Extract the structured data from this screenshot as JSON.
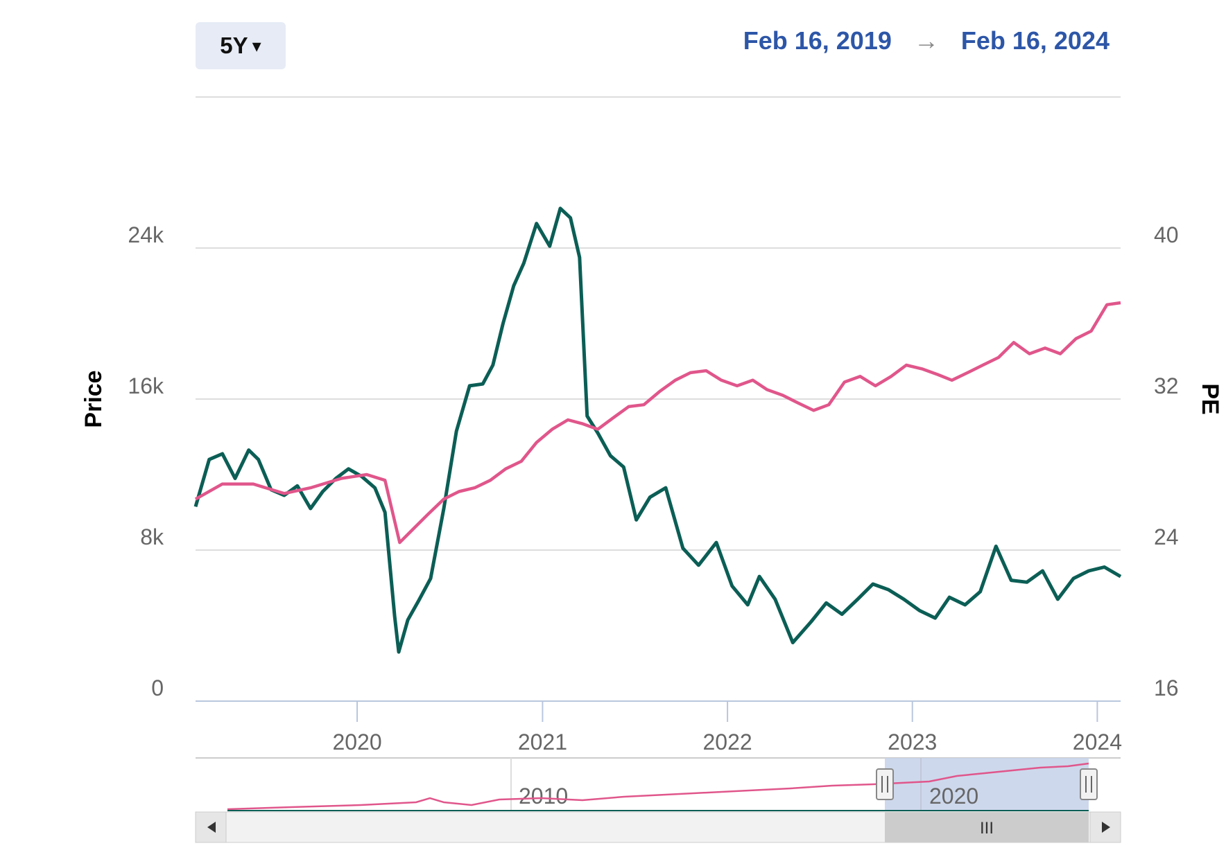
{
  "toolbar": {
    "range_label": "5Y",
    "range_caret": "▾",
    "start_date": "Feb 16, 2019",
    "arrow": "→",
    "end_date": "Feb 16, 2024"
  },
  "navigator": {
    "labels": [
      "2010",
      "2020"
    ],
    "scroll_left_icon": "◀",
    "scroll_right_icon": "▶",
    "grip": "III",
    "handle_glyph": "||"
  },
  "colors": {
    "price": "#0b5e55",
    "pe": "#e0568b",
    "grid": "#dddddd",
    "navigator_fill": "#c9d4ea"
  },
  "chart_data": {
    "type": "line",
    "ylabel_left": "Price",
    "ylabel_right": "PE",
    "x_ticks": [
      "2020",
      "2021",
      "2022",
      "2023",
      "2024"
    ],
    "y_left_ticks": [
      "0",
      "8k",
      "16k",
      "24k"
    ],
    "y_right_ticks": [
      "16",
      "24",
      "32",
      "40"
    ],
    "ylim_left": [
      0,
      32000
    ],
    "ylim_right": [
      16,
      48
    ],
    "grid": true,
    "legend": "none",
    "series": [
      {
        "axis": "left",
        "x": [
          "2019-02-16",
          "2019-03-15",
          "2019-04-10",
          "2019-05-05",
          "2019-06-01",
          "2019-06-20",
          "2019-07-15",
          "2019-08-10",
          "2019-09-05",
          "2019-10-01",
          "2019-10-25",
          "2019-11-20",
          "2019-12-15",
          "2020-01-10",
          "2020-02-05",
          "2020-02-25",
          "2020-03-15",
          "2020-03-23",
          "2020-04-10",
          "2020-05-01",
          "2020-05-25",
          "2020-06-20",
          "2020-07-15",
          "2020-08-10",
          "2020-09-05",
          "2020-09-25",
          "2020-10-15",
          "2020-11-05",
          "2020-11-25",
          "2020-12-20",
          "2021-01-15",
          "2021-02-05",
          "2021-02-25",
          "2021-03-15",
          "2021-03-30",
          "2021-04-20",
          "2021-05-15",
          "2021-06-10",
          "2021-07-05",
          "2021-08-01",
          "2021-09-01",
          "2021-10-05",
          "2021-11-05",
          "2021-12-10",
          "2022-01-10",
          "2022-02-10",
          "2022-03-05",
          "2022-04-05",
          "2022-05-10",
          "2022-06-15",
          "2022-07-15",
          "2022-08-15",
          "2022-09-15",
          "2022-10-15",
          "2022-11-15",
          "2022-12-15",
          "2023-01-15",
          "2023-02-15",
          "2023-03-15",
          "2023-04-15",
          "2023-05-15",
          "2023-06-15",
          "2023-07-15",
          "2023-08-15",
          "2023-09-15",
          "2023-10-15",
          "2023-11-15",
          "2023-12-15",
          "2024-01-15",
          "2024-02-16"
        ],
        "values": [
          10300,
          12800,
          13100,
          11800,
          13300,
          12800,
          11200,
          10900,
          11400,
          10200,
          11100,
          11800,
          12300,
          11900,
          11300,
          10000,
          4500,
          2600,
          4300,
          5300,
          6500,
          10200,
          14300,
          16700,
          16800,
          17800,
          20000,
          22000,
          23200,
          25300,
          24100,
          26100,
          25600,
          23500,
          15100,
          14200,
          13000,
          12400,
          9600,
          10800,
          11300,
          8100,
          7200,
          8400,
          6100,
          5100,
          6600,
          5400,
          3100,
          4200,
          5200,
          4600,
          5400,
          6200,
          5900,
          5400,
          4800,
          4400,
          5500,
          5100,
          5800,
          8200,
          6400,
          6300,
          6900,
          5400,
          6500,
          6900,
          7100,
          6600
        ]
      },
      {
        "axis": "right",
        "x": [
          "2019-02-16",
          "2019-04-10",
          "2019-06-10",
          "2019-08-10",
          "2019-10-01",
          "2019-12-01",
          "2020-01-20",
          "2020-02-25",
          "2020-03-25",
          "2020-04-20",
          "2020-05-20",
          "2020-06-20",
          "2020-07-20",
          "2020-08-20",
          "2020-09-20",
          "2020-10-20",
          "2020-11-20",
          "2020-12-20",
          "2021-01-20",
          "2021-02-20",
          "2021-03-20",
          "2021-04-20",
          "2021-05-20",
          "2021-06-20",
          "2021-07-20",
          "2021-08-20",
          "2021-09-20",
          "2021-10-20",
          "2021-11-20",
          "2021-12-20",
          "2022-01-20",
          "2022-02-20",
          "2022-03-20",
          "2022-04-20",
          "2022-05-20",
          "2022-06-20",
          "2022-07-20",
          "2022-08-20",
          "2022-09-20",
          "2022-10-20",
          "2022-11-20",
          "2022-12-20",
          "2023-01-20",
          "2023-02-20",
          "2023-03-20",
          "2023-04-20",
          "2023-05-20",
          "2023-06-20",
          "2023-07-20",
          "2023-08-20",
          "2023-09-20",
          "2023-10-20",
          "2023-11-20",
          "2023-12-20",
          "2024-01-20",
          "2024-02-16"
        ],
        "values": [
          26.7,
          27.5,
          27.5,
          27.0,
          27.3,
          27.8,
          28.0,
          27.7,
          24.4,
          25.1,
          25.9,
          26.7,
          27.1,
          27.3,
          27.7,
          28.3,
          28.7,
          29.7,
          30.4,
          30.9,
          30.7,
          30.4,
          31.0,
          31.6,
          31.7,
          32.4,
          33.0,
          33.4,
          33.5,
          33.0,
          32.7,
          33.0,
          32.5,
          32.2,
          31.8,
          31.4,
          31.7,
          32.9,
          33.2,
          32.7,
          33.2,
          33.8,
          33.6,
          33.3,
          33.0,
          33.4,
          33.8,
          34.2,
          35.0,
          34.4,
          34.7,
          34.4,
          35.2,
          35.6,
          37.0,
          37.1
        ]
      }
    ]
  }
}
